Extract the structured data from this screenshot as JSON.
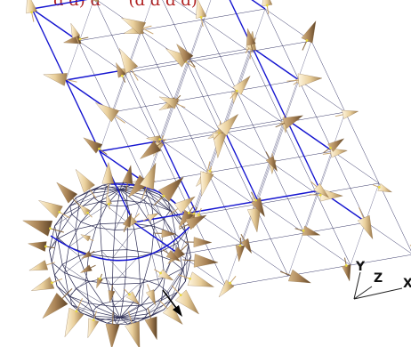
{
  "caption": {
    "text": "ɑ ɑ) ɑ ʹʹʹʹ (ɑ ɑ ɑ ɑ)",
    "color": "#b02020"
  },
  "triad": {
    "y_label": "Y",
    "z_label": "Z",
    "x_label": "X"
  },
  "colors": {
    "lattice_fine": "#3a3a6a",
    "lattice_strong": "#1515d0",
    "sphere_mesh": "#2e2e55",
    "cone_light": "#e9cf9b",
    "cone_mid": "#c8a572",
    "cone_dark": "#8a6a43",
    "dot_yellow": "#e8d840",
    "needle": "#000000"
  }
}
